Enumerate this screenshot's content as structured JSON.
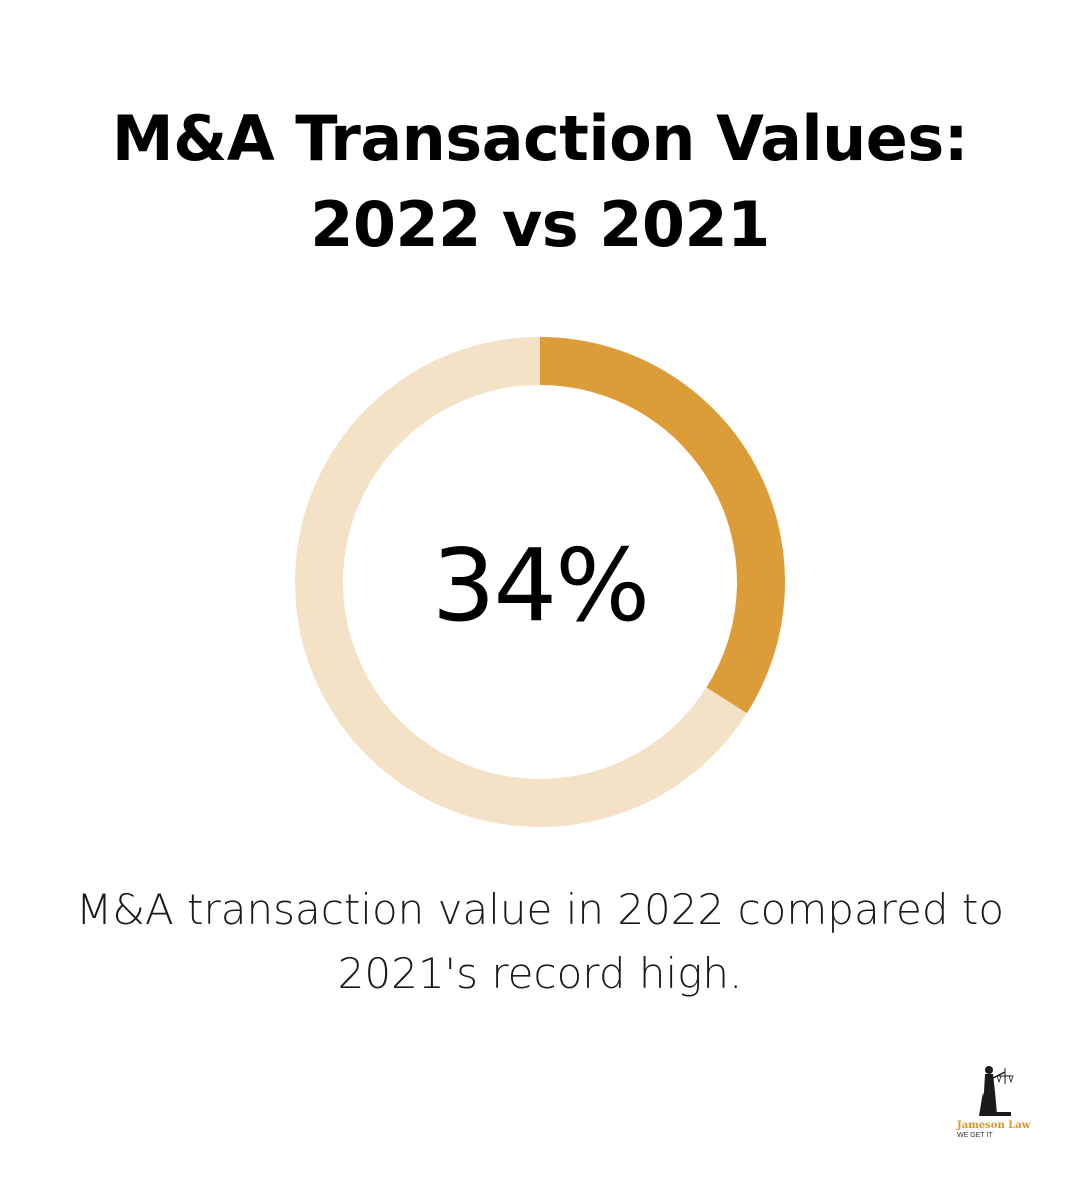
{
  "title": {
    "line1": "M&A Transaction Values:",
    "line2": "2022 vs 2021"
  },
  "chart_data": {
    "type": "pie",
    "variant": "donut",
    "value_percent": 34,
    "center_label": "34%",
    "slices": [
      {
        "value": 34,
        "color": "#dc9c38"
      },
      {
        "value": 66,
        "color": "#f3e2c6"
      }
    ]
  },
  "caption": {
    "line1": "M&A transaction value in 2022 compared to",
    "line2": "2021's record high."
  },
  "logo": {
    "name": "Jameson Law",
    "tagline": "WE GET IT",
    "icon": "lady-justice-icon"
  },
  "colors": {
    "accent": "#dc9c38",
    "track": "#f3e2c6",
    "text": "#000000"
  }
}
